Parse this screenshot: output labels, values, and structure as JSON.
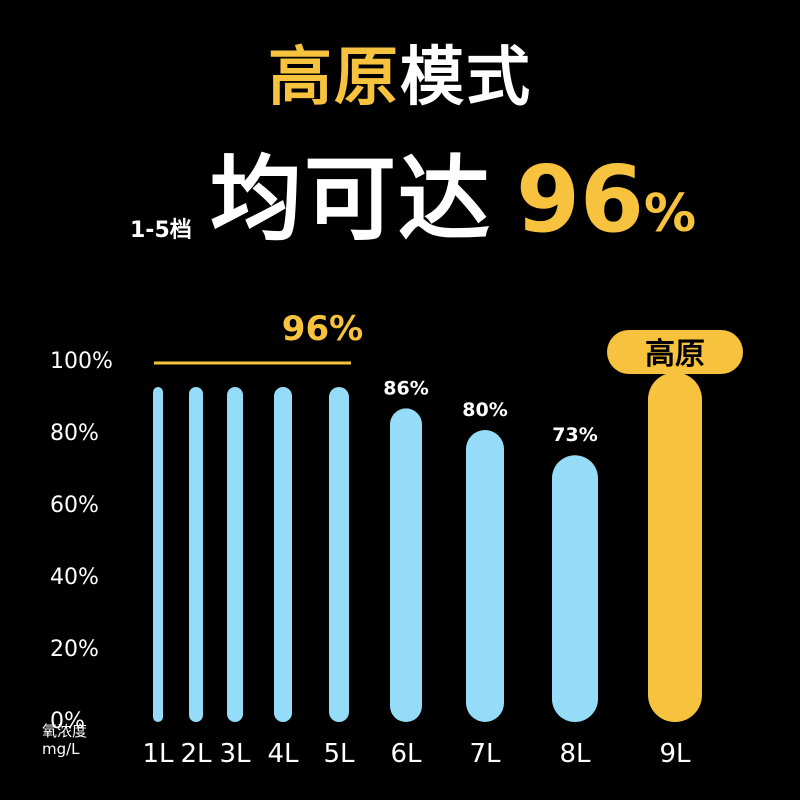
{
  "headline": {
    "line1_highlight": "高原",
    "line1_rest": "模式",
    "gear_label": "1-5档",
    "line2_text": "均可达",
    "line2_value": "96",
    "line2_sign": "%"
  },
  "axis": {
    "unit_line1": "氧浓度",
    "unit_line2": "mg/L"
  },
  "colors": {
    "background": "#000000",
    "accent": "#f7c23e",
    "bar_blue": "#94dcf7",
    "text": "#ffffff"
  },
  "chart_data": {
    "type": "bar",
    "categories": [
      "1L",
      "2L",
      "3L",
      "4L",
      "5L",
      "6L",
      "7L",
      "8L",
      "9L"
    ],
    "values": [
      96,
      96,
      96,
      96,
      96,
      86,
      80,
      73,
      96
    ],
    "ylim": [
      0,
      100
    ],
    "yticks": [
      "0%",
      "20%",
      "40%",
      "60%",
      "80%",
      "100%"
    ],
    "group_annotation": {
      "label": "96%",
      "covers": [
        "1L",
        "2L",
        "3L",
        "4L",
        "5L"
      ]
    },
    "data_labels": {
      "6L": "86%",
      "7L": "80%",
      "8L": "73%"
    },
    "highlight": {
      "category": "9L",
      "label": "高原"
    },
    "grid": false
  }
}
